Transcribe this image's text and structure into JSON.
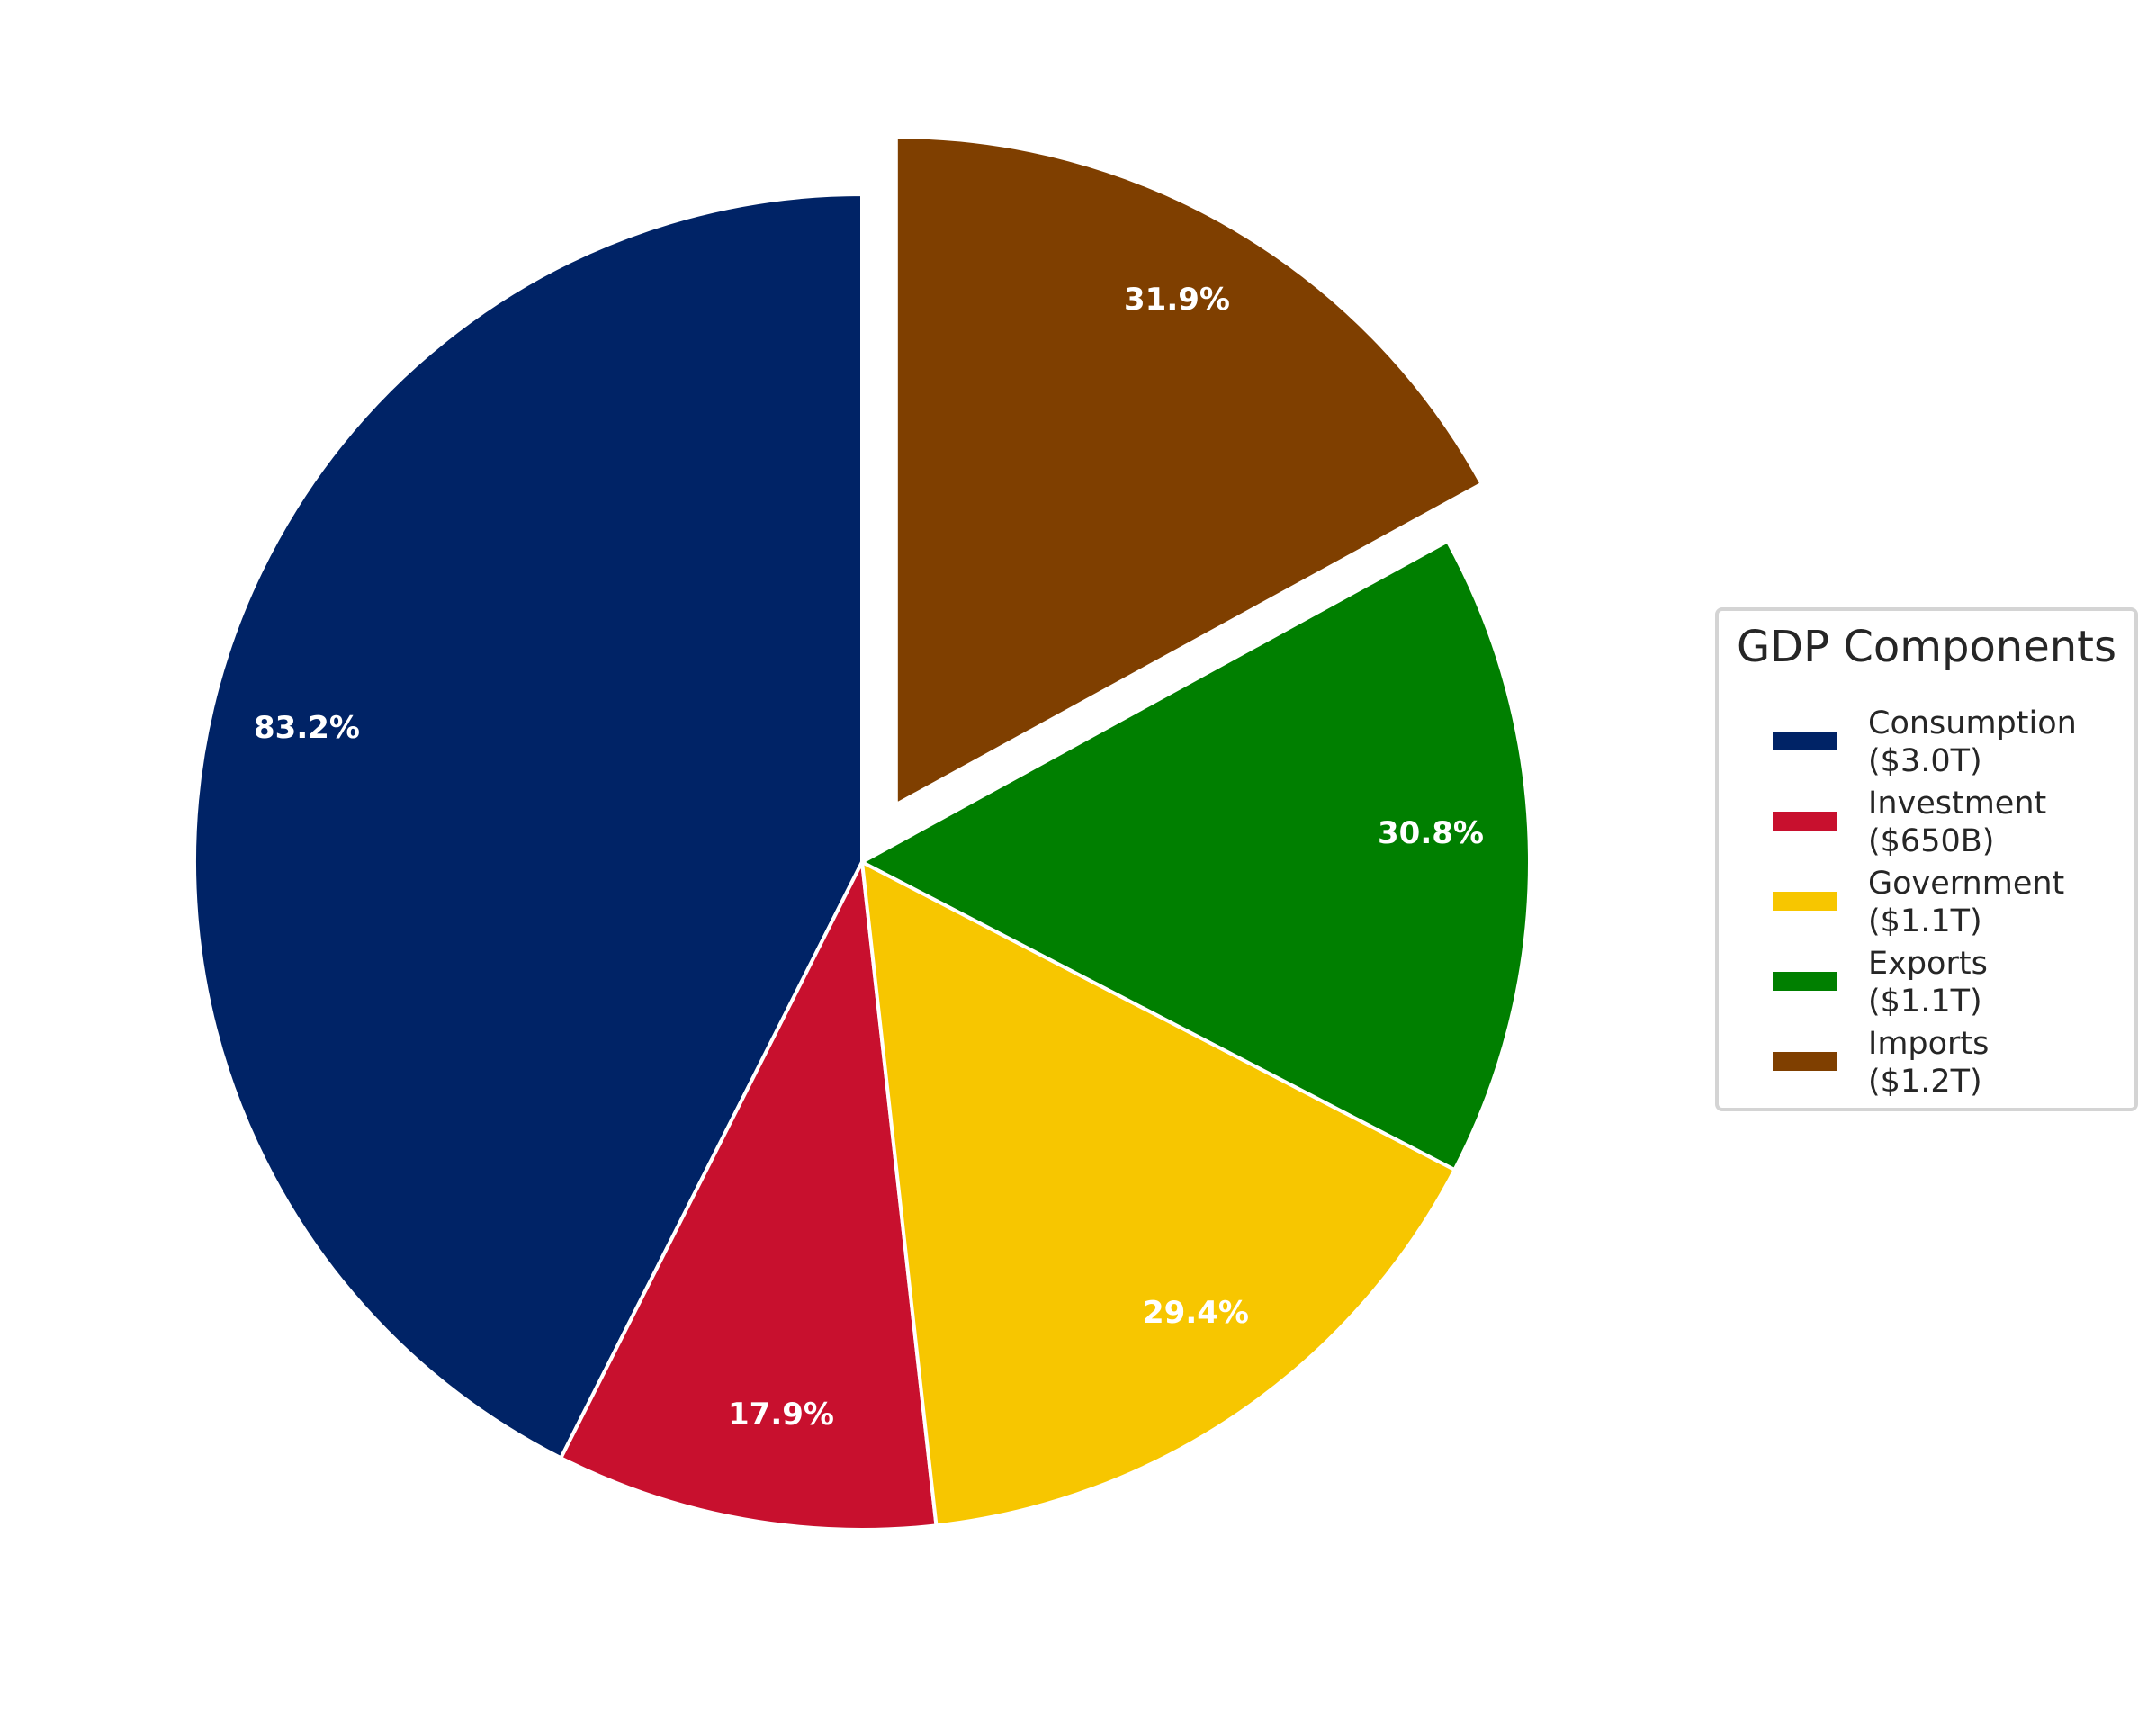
{
  "chart_data": {
    "type": "pie",
    "title": "",
    "legend_title": "GDP Components",
    "legend_position": "right",
    "start_angle": 90,
    "counterclock": true,
    "categories": [
      "Consumption",
      "Investment",
      "Government",
      "Exports",
      "Imports"
    ],
    "values": [
      3.0,
      0.65,
      1.1,
      1.1,
      1.2
    ],
    "value_labels": [
      "$3.0T",
      "$650B",
      "$1.1T",
      "$1.1T",
      "$1.2T"
    ],
    "pct_labels": [
      "83.2%",
      "17.9%",
      "29.4%",
      "30.8%",
      "31.9%"
    ],
    "colors": [
      "#002366",
      "#C8102E",
      "#F7C600",
      "#007F00",
      "#7F3F00"
    ],
    "explode": [
      0,
      0,
      0,
      0,
      0.1
    ]
  },
  "legend": {
    "title": "GDP Components",
    "items": [
      {
        "name": "Consumption",
        "value": "($3.0T)",
        "color": "#002366"
      },
      {
        "name": "Investment",
        "value": "($650B)",
        "color": "#C8102E"
      },
      {
        "name": "Government",
        "value": "($1.1T)",
        "color": "#F7C600"
      },
      {
        "name": "Exports",
        "value": "($1.1T)",
        "color": "#007F00"
      },
      {
        "name": "Imports",
        "value": "($1.2T)",
        "color": "#7F3F00"
      }
    ]
  },
  "slices": [
    {
      "label": "83.2%",
      "color": "#002366"
    },
    {
      "label": "17.9%",
      "color": "#C8102E"
    },
    {
      "label": "29.4%",
      "color": "#F7C600"
    },
    {
      "label": "30.8%",
      "color": "#007F00"
    },
    {
      "label": "31.9%",
      "color": "#7F3F00"
    }
  ]
}
